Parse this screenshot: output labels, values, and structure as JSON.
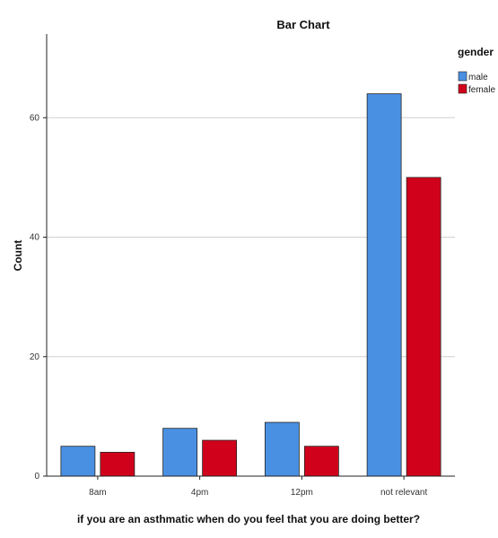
{
  "chart_data": {
    "type": "bar",
    "title": "Bar Chart",
    "xlabel": "if you are an asthmatic when do you feel that you are doing better?",
    "ylabel": "Count",
    "categories": [
      "8am",
      "4pm",
      "12pm",
      "not relevant"
    ],
    "series": [
      {
        "name": "male",
        "color": "#4a90e2",
        "values": [
          5,
          8,
          9,
          64
        ]
      },
      {
        "name": "female",
        "color": "#d0021b",
        "values": [
          4,
          6,
          5,
          50
        ]
      }
    ],
    "ylim": [
      0,
      74
    ],
    "yticks": [
      0,
      20,
      40,
      60
    ],
    "grid": true,
    "legend": {
      "title": "gender",
      "placement": "right"
    }
  }
}
